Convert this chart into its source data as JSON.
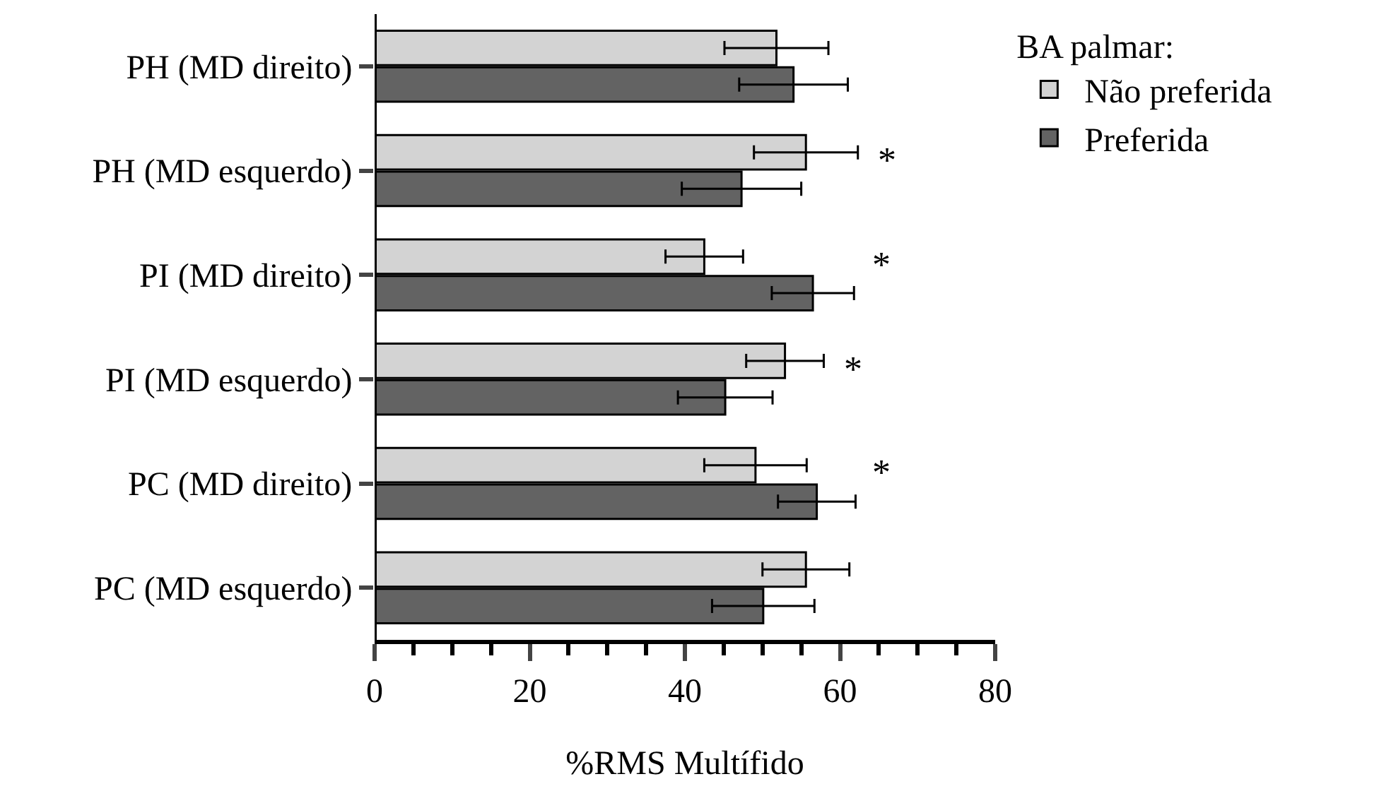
{
  "chart_data": {
    "type": "bar",
    "orientation": "horizontal",
    "xlabel": "%RMS Multífido",
    "legend_title": "BA palmar:",
    "legend": "top right",
    "categories": [
      "PH (MD direito)",
      "PH (MD esquerdo)",
      "PI (MD direito)",
      "PI (MD esquerdo)",
      "PC (MD direito)",
      "PC (MD esquerdo)"
    ],
    "series": [
      {
        "name": "Não preferida",
        "color": "#d3d3d3",
        "values": [
          51.8,
          55.6,
          42.5,
          52.9,
          49.1,
          55.6
        ],
        "errors": [
          6.7,
          6.7,
          5.0,
          5.0,
          6.6,
          5.6
        ]
      },
      {
        "name": "Preferida",
        "color": "#636363",
        "values": [
          54.0,
          47.3,
          56.5,
          45.2,
          57.0,
          50.1
        ],
        "errors": [
          7.0,
          7.7,
          5.3,
          6.1,
          5.0,
          6.6
        ]
      }
    ],
    "xlim": [
      0,
      80
    ],
    "xticks": [
      0,
      {
        "value": 5,
        "label": null
      },
      {
        "value": 10,
        "label": null
      },
      {
        "value": 15,
        "label": null
      },
      20,
      {
        "value": 25,
        "label": null
      },
      {
        "value": 30,
        "label": null
      },
      {
        "value": 35,
        "label": null
      },
      40,
      {
        "value": 45,
        "label": null
      },
      {
        "value": 50,
        "label": null
      },
      {
        "value": 55,
        "label": null
      },
      60,
      {
        "value": 65,
        "label": null
      },
      {
        "value": 70,
        "label": null
      },
      {
        "value": 75,
        "label": null
      },
      80
    ],
    "annotations": [
      "*",
      "*",
      "*",
      "*"
    ]
  }
}
